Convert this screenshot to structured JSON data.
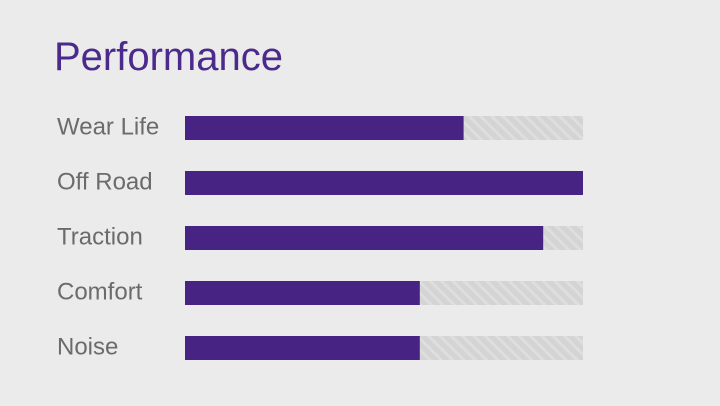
{
  "chart_data": {
    "type": "bar",
    "orientation": "horizontal",
    "title": "Performance",
    "categories": [
      "Wear Life",
      "Off Road",
      "Traction",
      "Comfort",
      "Noise"
    ],
    "values": [
      70,
      100,
      90,
      59,
      59
    ],
    "color": "#472384",
    "xlim": [
      0,
      100
    ]
  }
}
